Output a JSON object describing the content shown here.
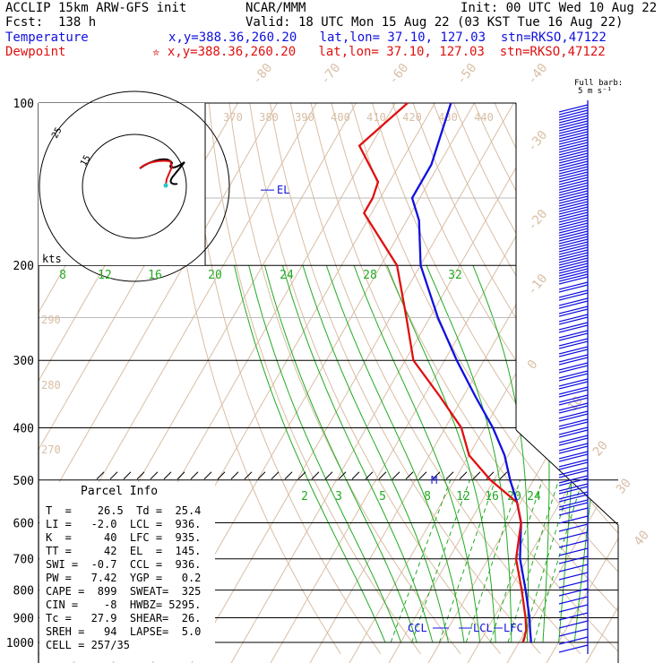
{
  "header": {
    "title": "ACCLIP 15km ARW-GFS init",
    "fcst": "Fcst:  138 h",
    "center": "NCAR/MMM",
    "init": "Init: 00 UTC Wed 10 Aug 22",
    "valid": "Valid: 18 UTC Mon 15 Aug 22 (03 KST Tue 16 Aug 22)",
    "temperature_label": "Temperature",
    "temperature_info": "x,y=388.36,260.20   lat,lon= 37.10, 127.03  stn=RKSO,47122",
    "dewpoint_label": "Dewpoint",
    "dewpoint_info": "✮ x,y=388.36,260.20   lat,lon= 37.10, 127.03  stn=RKSO,47122",
    "colors": {
      "temperature": "#1010e0",
      "dewpoint": "#e01010"
    }
  },
  "chart_data": {
    "type": "line",
    "pressure_labels": [
      "100",
      "200",
      "300",
      "400",
      "500",
      "600",
      "700",
      "800",
      "900",
      "1000"
    ],
    "skewed_temp_labels": [
      "-80",
      "-70",
      "-60",
      "-50",
      "-40",
      "-30",
      "-20",
      "-10",
      "0",
      "10",
      "20",
      "30",
      "40"
    ],
    "theta_labels": [
      "370",
      "380",
      "390",
      "400",
      "410",
      "420",
      "430",
      "440"
    ],
    "theta_left_labels": [
      "290",
      "280",
      "270"
    ],
    "mixing_ratio_upper": [
      "8",
      "12",
      "16",
      "20",
      "24",
      "28",
      "32"
    ],
    "mixing_ratio_lower": [
      "2",
      "3",
      "5",
      "8",
      "12",
      "16",
      "20",
      "24"
    ],
    "series": [
      {
        "name": "Temperature",
        "points": [
          [
            100,
            -72
          ],
          [
            130,
            -68
          ],
          [
            150,
            -68
          ],
          [
            165,
            -63
          ],
          [
            200,
            -56
          ],
          [
            250,
            -44
          ],
          [
            300,
            -33
          ],
          [
            350,
            -23
          ],
          [
            400,
            -14
          ],
          [
            450,
            -7
          ],
          [
            500,
            -2
          ],
          [
            550,
            3
          ],
          [
            600,
            7
          ],
          [
            700,
            12
          ],
          [
            800,
            18
          ],
          [
            900,
            23
          ],
          [
            950,
            25
          ],
          [
            1000,
            27
          ]
        ]
      },
      {
        "name": "Dewpoint",
        "points": [
          [
            100,
            -83
          ],
          [
            120,
            -89
          ],
          [
            140,
            -79
          ],
          [
            150,
            -78
          ],
          [
            160,
            -78
          ],
          [
            200,
            -62
          ],
          [
            250,
            -52
          ],
          [
            300,
            -44
          ],
          [
            350,
            -32
          ],
          [
            400,
            -22
          ],
          [
            450,
            -16
          ],
          [
            500,
            -7
          ],
          [
            550,
            3
          ],
          [
            600,
            7
          ],
          [
            700,
            11
          ],
          [
            800,
            17
          ],
          [
            900,
            22
          ],
          [
            950,
            24
          ],
          [
            1000,
            25
          ]
        ]
      }
    ],
    "annotations": {
      "el": "EL",
      "m": "M",
      "ccl": "CCL",
      "lcl": "LCL",
      "lfc": "LFC"
    },
    "wind_barb_title": "Full barb:",
    "wind_barb_unit": "5 m s⁻¹",
    "hodograph": {
      "rings": [
        "15",
        "25"
      ],
      "unit": "kts"
    }
  },
  "parcel_info": {
    "title": "Parcel Info",
    "rows": [
      "T  =    26.5  Td =  25.4",
      "LI =   -2.0  LCL =  936.",
      "K  =     40  LFC =  935.",
      "TT =     42  EL  =  145.",
      "SWI =  -0.7  CCL =  936.",
      "PW =   7.42  YGP =   0.2",
      "CAPE =  899  SWEAT=  325",
      "CIN =    -8  HWBZ= 5295.",
      "Tc =   27.9  SHEAR=  26.",
      "SREH =   94  LAPSE=  5.0",
      "CELL = 257/35"
    ]
  }
}
